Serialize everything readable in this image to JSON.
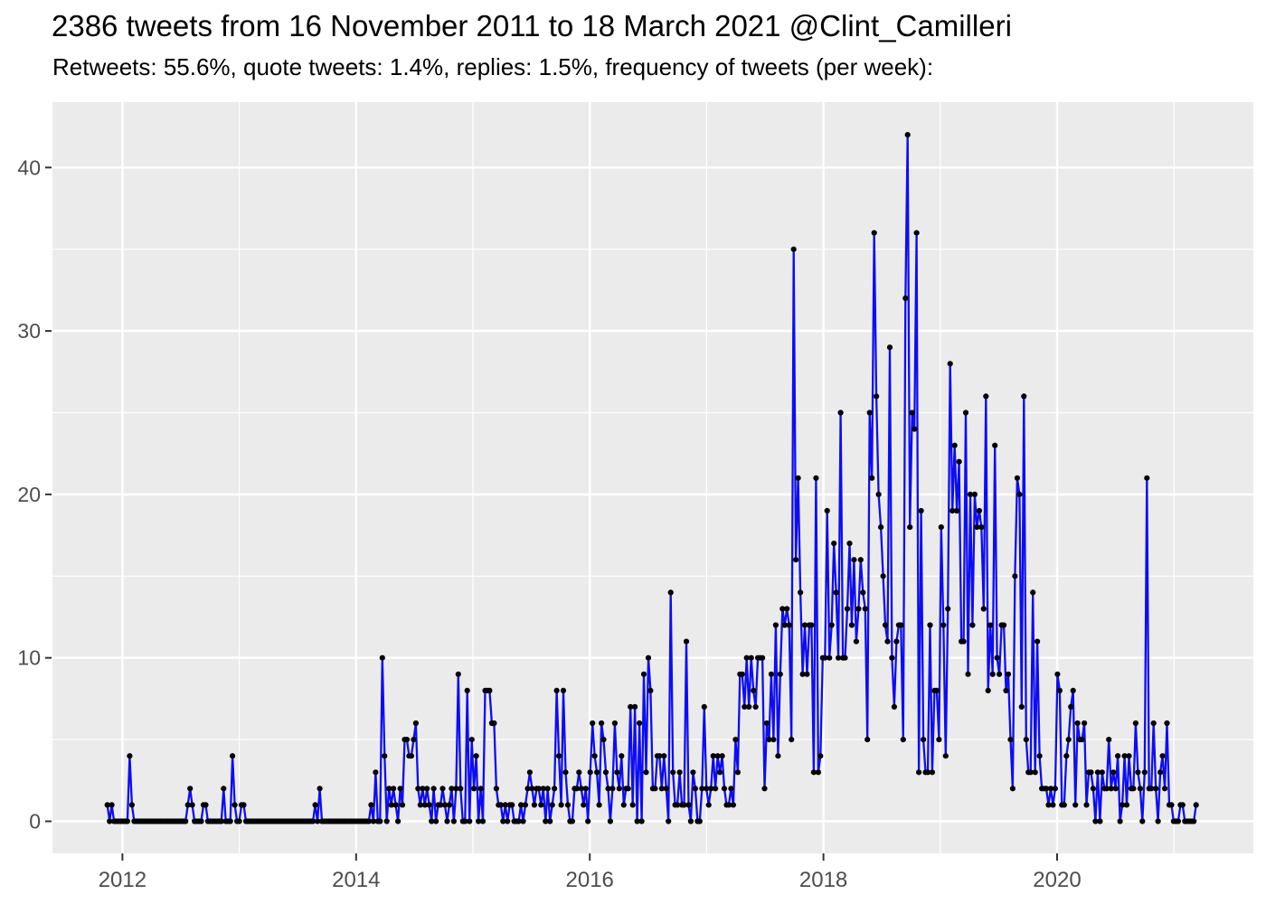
{
  "header": {
    "title": "2386 tweets from 16 November 2011 to 18 March 2021 @Clint_Camilleri",
    "subtitle": "Retweets: 55.6%, quote tweets: 1.4%, replies: 1.5%, frequency of tweets (per week):"
  },
  "chart_data": {
    "type": "line",
    "title": "2386 tweets from 16 November 2011 to 18 March 2021 @Clint_Camilleri",
    "subtitle": "Retweets: 55.6%, quote tweets: 1.4%, replies: 1.5%, frequency of tweets (per week):",
    "series_name": "tweets-per-week",
    "xlabel": "",
    "ylabel": "",
    "x_start_date": "2011-11-16",
    "x_end_date": "2021-03-18",
    "x_unit": "week",
    "x_axis_ticks": [
      2012,
      2014,
      2016,
      2018,
      2020
    ],
    "x_axis_minor_ticks": [
      2013,
      2015,
      2017,
      2019,
      2021
    ],
    "y_axis_ticks": [
      0,
      10,
      20,
      30,
      40
    ],
    "y_axis_minor_ticks": [
      5,
      15,
      25,
      35
    ],
    "ylim": [
      -2,
      44
    ],
    "grid": true,
    "legend_position": "none",
    "colors": {
      "line": "#0D0DF5",
      "point": "#000000",
      "panel_bg": "#EBEBEB",
      "grid": "#FFFFFF",
      "tick_label": "#4D4D4D",
      "tick_mark": "#333333",
      "title_text": "#000000"
    },
    "values": [
      1,
      0,
      1,
      0,
      0,
      0,
      0,
      0,
      0,
      0,
      4,
      1,
      0,
      0,
      0,
      0,
      0,
      0,
      0,
      0,
      0,
      0,
      0,
      0,
      0,
      0,
      0,
      0,
      0,
      0,
      0,
      0,
      0,
      0,
      0,
      0,
      1,
      2,
      1,
      0,
      0,
      0,
      0,
      1,
      1,
      0,
      0,
      0,
      0,
      0,
      0,
      0,
      2,
      0,
      0,
      0,
      4,
      1,
      0,
      0,
      1,
      1,
      0,
      0,
      0,
      0,
      0,
      0,
      0,
      0,
      0,
      0,
      0,
      0,
      0,
      0,
      0,
      0,
      0,
      0,
      0,
      0,
      0,
      0,
      0,
      0,
      0,
      0,
      0,
      0,
      0,
      0,
      0,
      1,
      0,
      2,
      0,
      0,
      0,
      0,
      0,
      0,
      0,
      0,
      0,
      0,
      0,
      0,
      0,
      0,
      0,
      0,
      0,
      0,
      0,
      0,
      0,
      0,
      1,
      0,
      3,
      0,
      0,
      10,
      4,
      0,
      2,
      1,
      2,
      1,
      0,
      2,
      1,
      5,
      5,
      4,
      4,
      5,
      6,
      2,
      1,
      2,
      1,
      2,
      1,
      0,
      2,
      0,
      1,
      1,
      2,
      1,
      0,
      1,
      2,
      0,
      2,
      9,
      2,
      0,
      0,
      8,
      0,
      5,
      2,
      4,
      0,
      2,
      0,
      8,
      8,
      8,
      6,
      6,
      2,
      1,
      1,
      0,
      1,
      0,
      1,
      1,
      0,
      0,
      0,
      1,
      0,
      1,
      2,
      3,
      2,
      1,
      2,
      2,
      1,
      2,
      0,
      2,
      0,
      1,
      2,
      8,
      4,
      1,
      8,
      3,
      1,
      0,
      0,
      2,
      2,
      3,
      2,
      1,
      2,
      0,
      3,
      6,
      4,
      3,
      1,
      6,
      5,
      3,
      2,
      0,
      2,
      6,
      3,
      2,
      4,
      1,
      2,
      2,
      7,
      1,
      7,
      0,
      6,
      0,
      9,
      3,
      10,
      8,
      2,
      2,
      4,
      4,
      2,
      4,
      2,
      0,
      14,
      3,
      1,
      1,
      3,
      1,
      1,
      11,
      1,
      0,
      3,
      2,
      0,
      0,
      2,
      7,
      2,
      1,
      2,
      4,
      2,
      4,
      3,
      4,
      2,
      1,
      1,
      2,
      1,
      5,
      3,
      9,
      9,
      7,
      10,
      7,
      10,
      8,
      7,
      10,
      10,
      10,
      2,
      6,
      5,
      9,
      5,
      12,
      4,
      9,
      13,
      12,
      13,
      12,
      5,
      35,
      16,
      21,
      14,
      9,
      12,
      9,
      12,
      12,
      3,
      21,
      3,
      4,
      10,
      10,
      19,
      10,
      12,
      17,
      14,
      10,
      25,
      10,
      10,
      13,
      17,
      12,
      16,
      11,
      13,
      16,
      14,
      13,
      5,
      25,
      21,
      36,
      26,
      20,
      18,
      15,
      12,
      11,
      29,
      10,
      7,
      11,
      12,
      12,
      5,
      32,
      42,
      18,
      25,
      24,
      36,
      3,
      19,
      5,
      3,
      3,
      12,
      3,
      8,
      8,
      5,
      18,
      12,
      4,
      13,
      28,
      19,
      23,
      19,
      22,
      11,
      11,
      25,
      9,
      20,
      12,
      20,
      18,
      19,
      18,
      13,
      26,
      8,
      12,
      9,
      23,
      10,
      9,
      12,
      12,
      8,
      9,
      5,
      2,
      15,
      21,
      20,
      7,
      26,
      5,
      3,
      3,
      14,
      3,
      11,
      4,
      2,
      2,
      2,
      1,
      2,
      1,
      2,
      9,
      8,
      1,
      1,
      4,
      5,
      7,
      8,
      1,
      6,
      5,
      5,
      6,
      1,
      3,
      3,
      2,
      0,
      3,
      0,
      3,
      2,
      2,
      5,
      2,
      3,
      2,
      4,
      0,
      1,
      4,
      1,
      4,
      2,
      2,
      6,
      3,
      2,
      0,
      3,
      21,
      2,
      2,
      6,
      2,
      0,
      3,
      4,
      2,
      6,
      1,
      1,
      0,
      0,
      0,
      1,
      1,
      0,
      0,
      0,
      0,
      0,
      1
    ]
  }
}
